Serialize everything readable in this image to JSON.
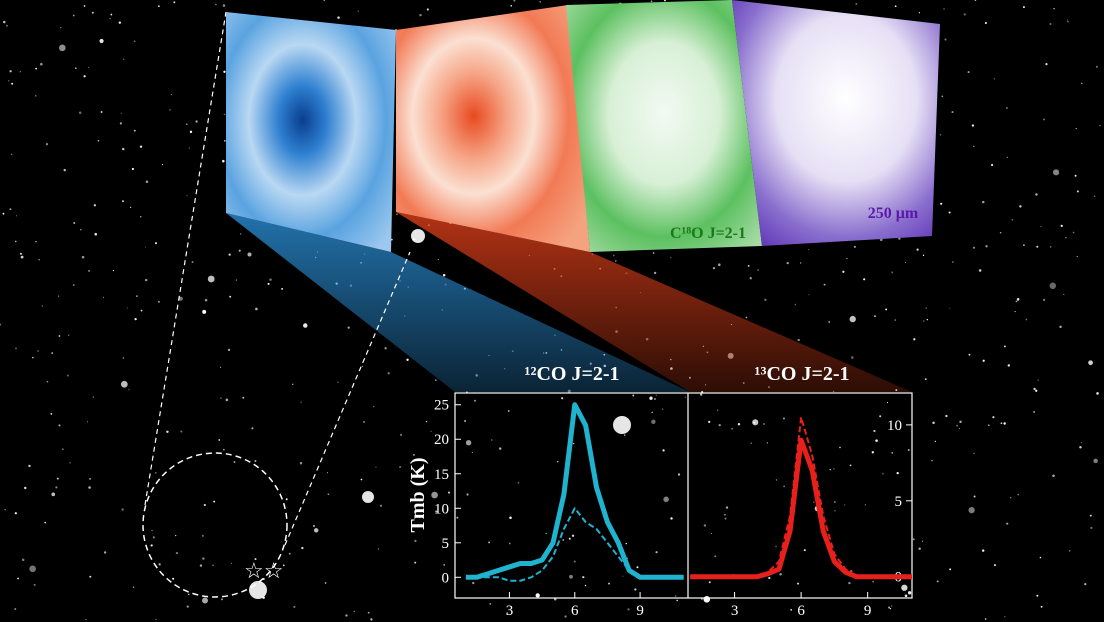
{
  "panels": {
    "c18o_label": "C¹⁸O J=2-1",
    "dust_label": "250 μm"
  },
  "chart_data": [
    {
      "type": "line",
      "title": "¹²CO J=2-1",
      "y_label": "Tmb (K)",
      "x": [
        1,
        1.5,
        2,
        2.5,
        3,
        3.5,
        4,
        4.5,
        5,
        5.5,
        6,
        6.5,
        7,
        7.5,
        8,
        8.5,
        9,
        9.5,
        10,
        10.5,
        11
      ],
      "xlim": [
        0.5,
        11.2
      ],
      "xticks": [
        3,
        6,
        9
      ],
      "ylim": [
        -3,
        26.7
      ],
      "yticks": [
        0,
        5,
        10,
        15,
        20,
        25
      ],
      "series": [
        {
          "color": "#1fb3cf",
          "line": "solid",
          "values": [
            0,
            0,
            0.5,
            1,
            1.5,
            2,
            2,
            2.5,
            5,
            12,
            25,
            22,
            13,
            8,
            5,
            1,
            0,
            0,
            0,
            0,
            0
          ]
        },
        {
          "color": "#1fb3cf",
          "line": "dashed",
          "values": [
            0,
            0,
            0,
            0,
            -0.5,
            -0.5,
            0,
            1,
            3,
            7,
            10,
            8,
            7,
            5,
            3,
            1,
            0,
            0,
            0,
            0,
            0
          ]
        }
      ]
    },
    {
      "type": "line",
      "title": "¹³CO J=2-1",
      "x": [
        1,
        1.5,
        2,
        2.5,
        3,
        3.5,
        4,
        4.5,
        5,
        5.5,
        6,
        6.5,
        7,
        7.5,
        8,
        8.5,
        9,
        9.5,
        10,
        10.5,
        11
      ],
      "xlim": [
        0.9,
        11
      ],
      "xticks": [
        3,
        6,
        9
      ],
      "y2lim": [
        -1.4,
        12.1
      ],
      "y2ticks": [
        0,
        5,
        10
      ],
      "series": [
        {
          "color": "#e8201c",
          "line": "solid",
          "axis": "y2",
          "values": [
            0,
            0,
            0,
            0,
            0,
            0,
            0,
            0.2,
            0.5,
            3,
            9,
            7,
            3,
            1,
            0.3,
            0,
            0,
            0,
            0,
            0,
            0
          ]
        },
        {
          "color": "#e8201c",
          "line": "dashed",
          "axis": "y2",
          "values": [
            0,
            0,
            0,
            0,
            0,
            0,
            0,
            0.3,
            1,
            4,
            10.5,
            8,
            4,
            1.5,
            0.5,
            0,
            0,
            0,
            0,
            0,
            0
          ]
        }
      ]
    }
  ]
}
